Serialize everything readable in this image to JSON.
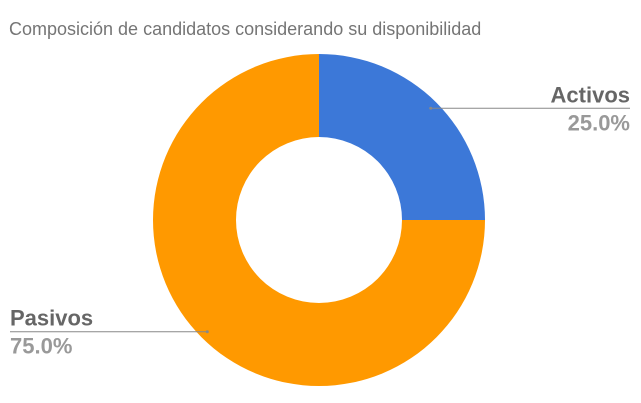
{
  "chart_data": {
    "type": "donut",
    "title": "Composición de candidatos considerando su disponibilidad",
    "categories": [
      "Activos",
      "Pasivos"
    ],
    "values": [
      25,
      75
    ],
    "value_labels": [
      "25.0%",
      "75.0%"
    ],
    "colors": [
      "#3c78d8",
      "#ff9900"
    ]
  }
}
